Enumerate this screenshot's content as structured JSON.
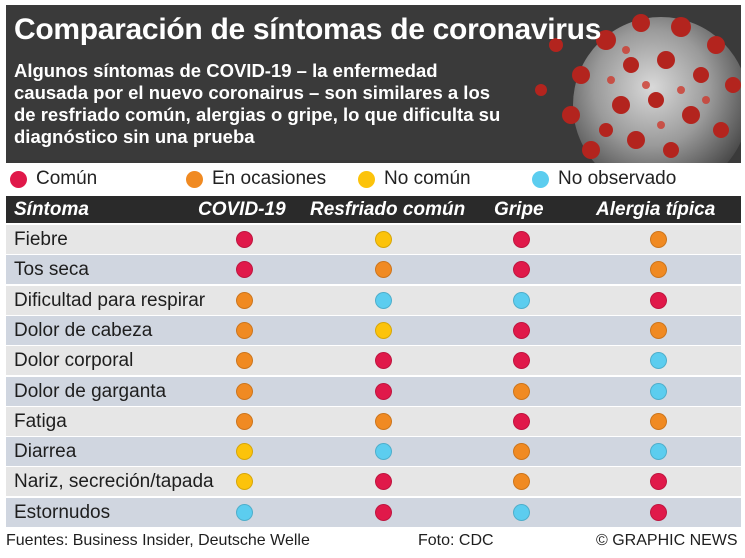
{
  "header": {
    "title": "Comparación de síntomas de coronavirus",
    "subtitle": "Algunos síntomas de COVID-19 – la enfermedad causada por el nuevo coronairus – son similares a los de resfriado común, alergias o gripe, lo que dificulta su diagnóstico sin una prueba"
  },
  "legend": [
    {
      "label": "Común",
      "color": "#e0194a"
    },
    {
      "label": "En ocasiones",
      "color": "#f08a22"
    },
    {
      "label": "No común",
      "color": "#fcc30b"
    },
    {
      "label": "No observado",
      "color": "#5ccdef"
    }
  ],
  "table": {
    "headers": [
      "Síntoma",
      "COVID-19",
      "Resfriado común",
      "Gripe",
      "Alergia típica"
    ],
    "rows": [
      {
        "symptom": "Fiebre",
        "levels": [
          "comun",
          "no_comun",
          "comun",
          "ocasiones"
        ]
      },
      {
        "symptom": "Tos seca",
        "levels": [
          "comun",
          "ocasiones",
          "comun",
          "ocasiones"
        ]
      },
      {
        "symptom": "Dificultad para respirar",
        "levels": [
          "ocasiones",
          "no_observado",
          "no_observado",
          "comun"
        ]
      },
      {
        "symptom": "Dolor de cabeza",
        "levels": [
          "ocasiones",
          "no_comun",
          "comun",
          "ocasiones"
        ]
      },
      {
        "symptom": "Dolor corporal",
        "levels": [
          "ocasiones",
          "comun",
          "comun",
          "no_observado"
        ]
      },
      {
        "symptom": "Dolor de garganta",
        "levels": [
          "ocasiones",
          "comun",
          "ocasiones",
          "no_observado"
        ]
      },
      {
        "symptom": "Fatiga",
        "levels": [
          "ocasiones",
          "ocasiones",
          "comun",
          "ocasiones"
        ]
      },
      {
        "symptom": "Diarrea",
        "levels": [
          "no_comun",
          "no_observado",
          "ocasiones",
          "no_observado"
        ]
      },
      {
        "symptom": "Nariz, secreción/tapada",
        "levels": [
          "no_comun",
          "comun",
          "ocasiones",
          "comun"
        ]
      },
      {
        "symptom": "Estornudos",
        "levels": [
          "no_observado",
          "comun",
          "no_observado",
          "comun"
        ]
      }
    ]
  },
  "colors": {
    "comun": "#e0194a",
    "ocasiones": "#f08a22",
    "no_comun": "#fcc30b",
    "no_observado": "#5ccdef"
  },
  "footer": {
    "sources": "Fuentes: Business Insider, Deutsche Welle",
    "photo": "Foto: CDC",
    "credit": "© GRAPHIC NEWS"
  }
}
